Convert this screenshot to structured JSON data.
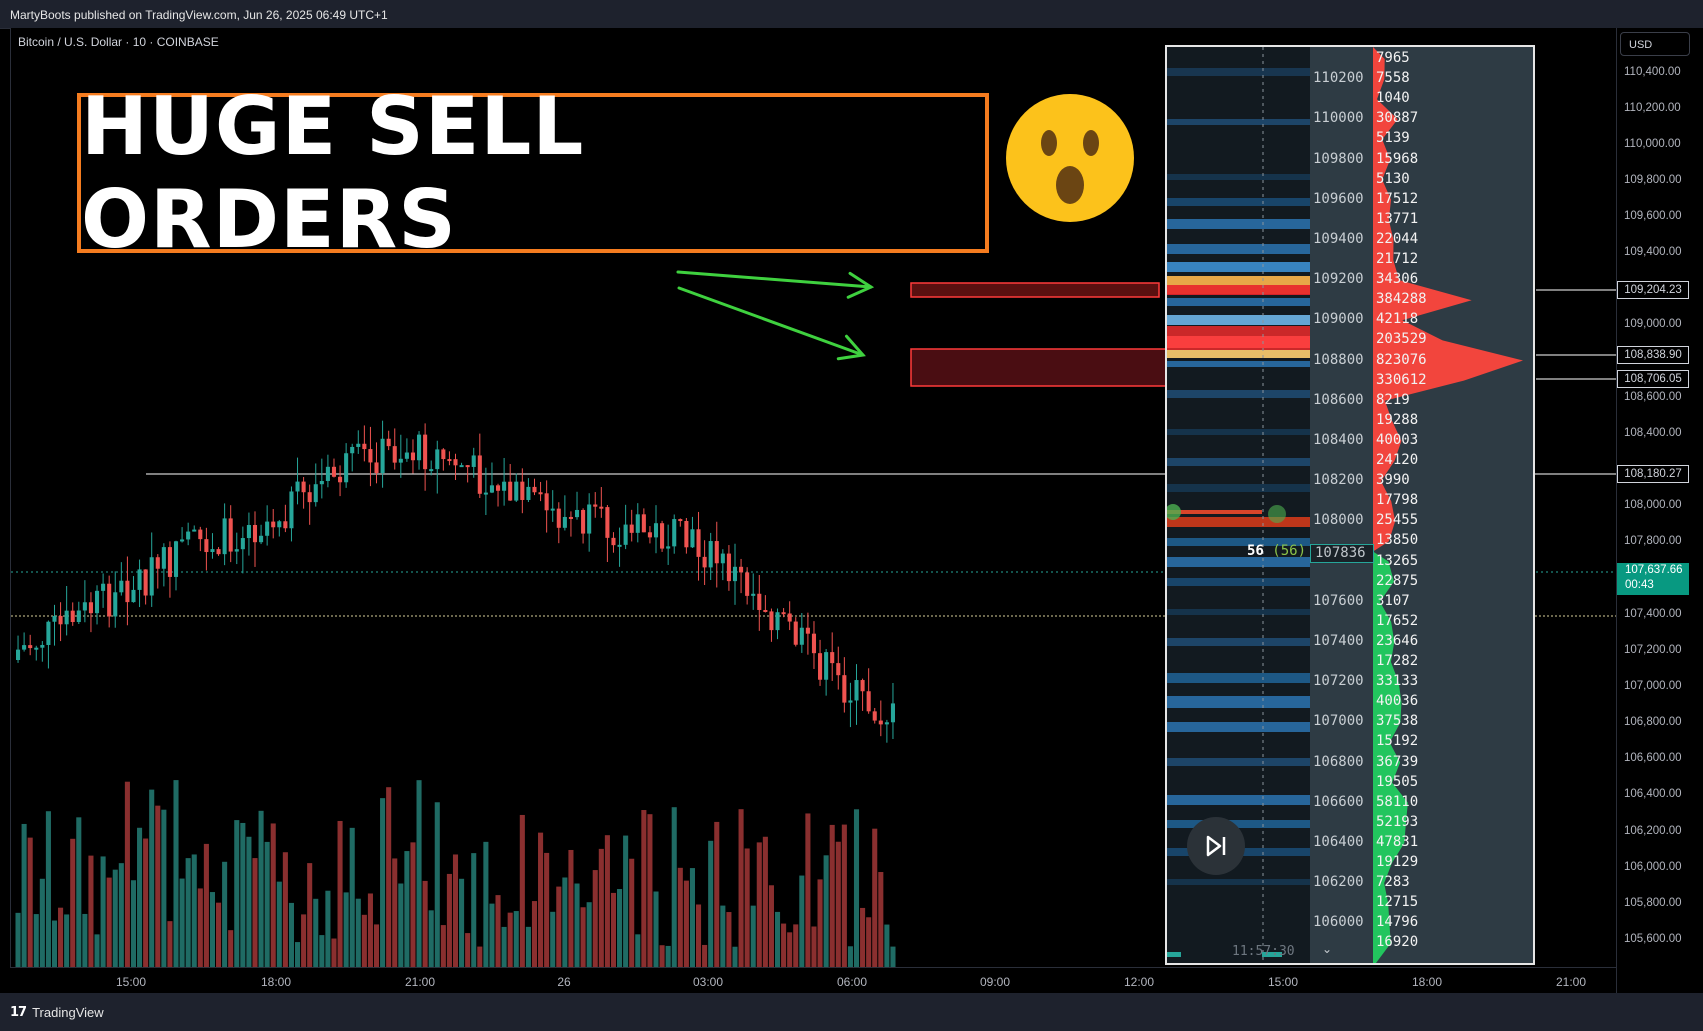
{
  "header": {
    "publish_note": "MartyBoots published on TradingView.com, Jun 26, 2025 06:49 UTC+1"
  },
  "symbol_title": "Bitcoin / U.S. Dollar · 10 · COINBASE",
  "headline": "HUGE SELL ORDERS",
  "emoji_icon": "astonished-face-emoji",
  "footer": {
    "brand": "TradingView",
    "logo_icon": "tradingview-logo-icon"
  },
  "price_axis": {
    "currency": "USD",
    "ticks": [
      "110,400.00",
      "110,200.00",
      "110,000.00",
      "109,800.00",
      "109,600.00",
      "109,400.00",
      "109,000.00",
      "108,600.00",
      "108,400.00",
      "108,000.00",
      "107,800.00",
      "107,400.00",
      "107,200.00",
      "107,000.00",
      "106,800.00",
      "106,600.00",
      "106,400.00",
      "106,200.00",
      "106,000.00",
      "105,800.00",
      "105,600.00"
    ],
    "level_tags": [
      "109,204.23",
      "108,838.90",
      "108,706.05",
      "108,180.27"
    ],
    "current_price": "107,637.66",
    "countdown": "00:43"
  },
  "time_axis": [
    "15:00",
    "18:00",
    "21:00",
    "26",
    "03:00",
    "06:00",
    "09:00",
    "12:00",
    "15:00",
    "18:00",
    "21:00"
  ],
  "orderbook": {
    "rows": [
      {
        "price": "",
        "qty": "7965"
      },
      {
        "price": "110200",
        "qty": "7558"
      },
      {
        "price": "",
        "qty": "1040"
      },
      {
        "price": "110000",
        "qty": "30887"
      },
      {
        "price": "",
        "qty": "5139"
      },
      {
        "price": "109800",
        "qty": "15968"
      },
      {
        "price": "",
        "qty": "5130"
      },
      {
        "price": "109600",
        "qty": "17512"
      },
      {
        "price": "",
        "qty": "13771"
      },
      {
        "price": "109400",
        "qty": "22044"
      },
      {
        "price": "",
        "qty": "21712"
      },
      {
        "price": "109200",
        "qty": "34306"
      },
      {
        "price": "",
        "qty": "384288"
      },
      {
        "price": "109000",
        "qty": "42118"
      },
      {
        "price": "",
        "qty": "203529"
      },
      {
        "price": "108800",
        "qty": "823076"
      },
      {
        "price": "",
        "qty": "330612"
      },
      {
        "price": "108600",
        "qty": "8219"
      },
      {
        "price": "",
        "qty": "19288"
      },
      {
        "price": "108400",
        "qty": "40003"
      },
      {
        "price": "",
        "qty": "24120"
      },
      {
        "price": "108200",
        "qty": "3990"
      },
      {
        "price": "",
        "qty": "17798"
      },
      {
        "price": "108000",
        "qty": "25455"
      },
      {
        "price": "",
        "qty": "13850"
      },
      {
        "price": "",
        "qty": "13265"
      },
      {
        "price": "",
        "qty": "22875"
      },
      {
        "price": "107600",
        "qty": "3107"
      },
      {
        "price": "",
        "qty": "17652"
      },
      {
        "price": "107400",
        "qty": "23646"
      },
      {
        "price": "",
        "qty": "17282"
      },
      {
        "price": "107200",
        "qty": "33133"
      },
      {
        "price": "",
        "qty": "40036"
      },
      {
        "price": "107000",
        "qty": "37538"
      },
      {
        "price": "",
        "qty": "15192"
      },
      {
        "price": "106800",
        "qty": "36739"
      },
      {
        "price": "",
        "qty": "19505"
      },
      {
        "price": "106600",
        "qty": "58110"
      },
      {
        "price": "",
        "qty": "52193"
      },
      {
        "price": "106400",
        "qty": "47831"
      },
      {
        "price": "",
        "qty": "19129"
      },
      {
        "price": "106200",
        "qty": "7283"
      },
      {
        "price": "",
        "qty": "12715"
      },
      {
        "price": "106000",
        "qty": "14796"
      },
      {
        "price": "",
        "qty": "16920"
      }
    ],
    "current_price_box": "107836",
    "trade_size": "56",
    "trade_size_paren": "(56)",
    "time_label": "11:57:30",
    "skip_icon": "skip-next-icon"
  },
  "colors": {
    "up": "#26a69a",
    "down": "#ef5350",
    "headline_border": "#f57c1f",
    "arrow": "#3fd13f",
    "sell_zone": "#ff3b3b"
  }
}
